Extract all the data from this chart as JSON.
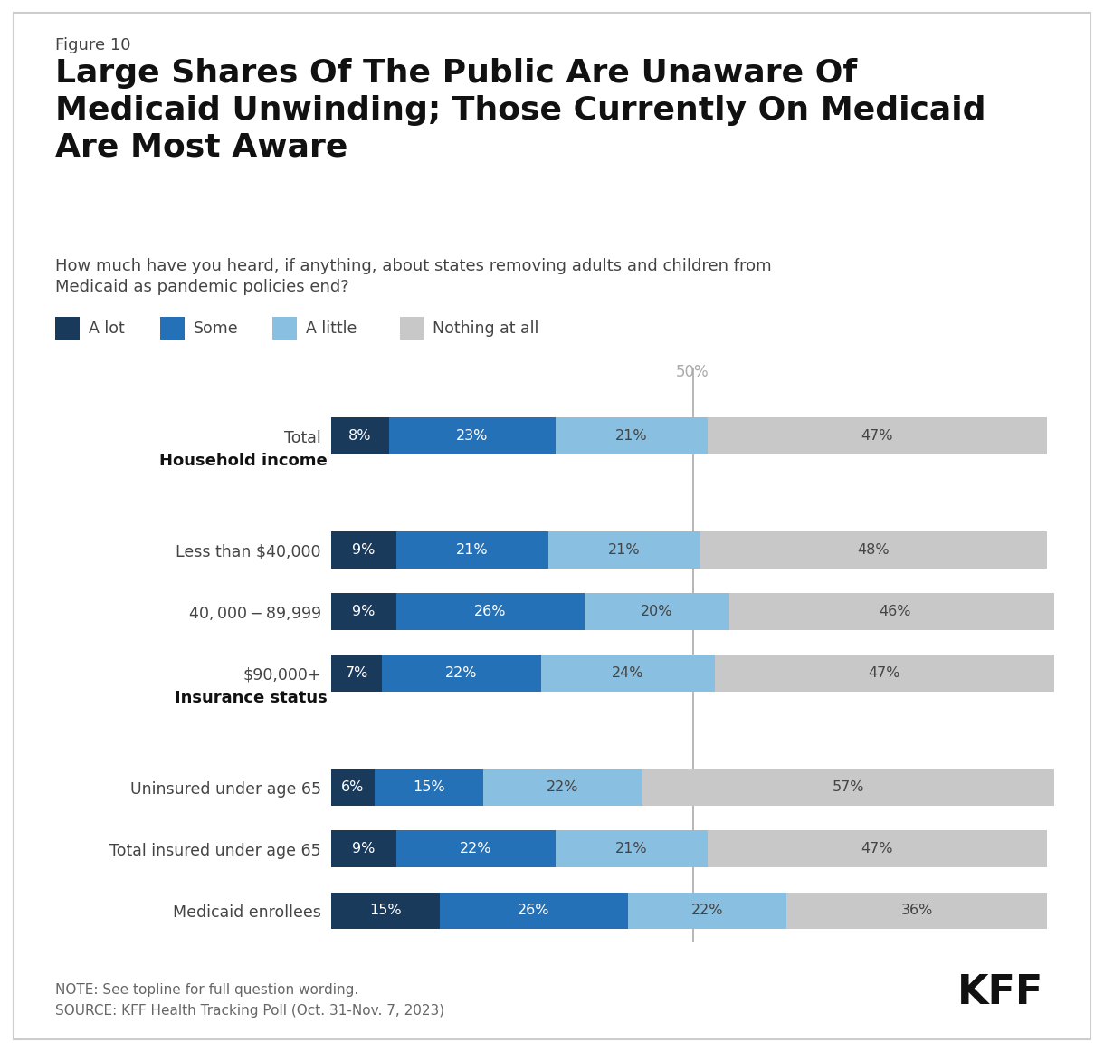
{
  "figure_label": "Figure 10",
  "title": "Large Shares Of The Public Are Unaware Of\nMedicaid Unwinding; Those Currently On Medicaid\nAre Most Aware",
  "subtitle": "How much have you heard, if anything, about states removing adults and children from\nMedicaid as pandemic policies end?",
  "legend_labels": [
    "A lot",
    "Some",
    "A little",
    "Nothing at all"
  ],
  "colors": [
    "#1a3a5c",
    "#2471b8",
    "#89bfe0",
    "#c8c8c8"
  ],
  "categories": [
    "Total",
    "HEADER:Household income",
    "Less than $40,000",
    "$40,000-$89,999",
    "$90,000+",
    "HEADER:Insurance status",
    "Uninsured under age 65",
    "Total insured under age 65",
    "Medicaid enrollees"
  ],
  "data": [
    [
      8,
      23,
      21,
      47
    ],
    null,
    [
      9,
      21,
      21,
      48
    ],
    [
      9,
      26,
      20,
      46
    ],
    [
      7,
      22,
      24,
      47
    ],
    null,
    [
      6,
      15,
      22,
      57
    ],
    [
      9,
      22,
      21,
      47
    ],
    [
      15,
      26,
      22,
      36
    ]
  ],
  "note": "NOTE: See topline for full question wording.\nSOURCE: KFF Health Tracking Poll (Oct. 31-Nov. 7, 2023)",
  "bar_height": 0.6,
  "background_color": "#ffffff",
  "text_color": "#444444",
  "header_color": "#111111",
  "fifty_pct_line_color": "#aaaaaa",
  "white": "#ffffff"
}
